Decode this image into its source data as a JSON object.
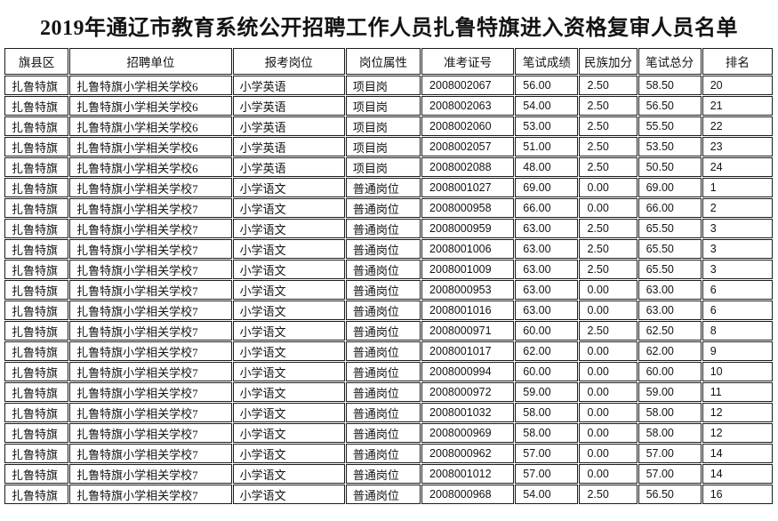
{
  "title": "2019年通辽市教育系统公开招聘工作人员扎鲁特旗进入资格复审人员名单",
  "table": {
    "columns": [
      "旗县区",
      "招聘单位",
      "报考岗位",
      "岗位属性",
      "准考证号",
      "笔试成绩",
      "民族加分",
      "笔试总分",
      "排名"
    ],
    "rows": [
      [
        "扎鲁特旗",
        "扎鲁特旗小学相关学校6",
        "小学英语",
        "项目岗",
        "2008002067",
        "56.00",
        "2.50",
        "58.50",
        "20"
      ],
      [
        "扎鲁特旗",
        "扎鲁特旗小学相关学校6",
        "小学英语",
        "项目岗",
        "2008002063",
        "54.00",
        "2.50",
        "56.50",
        "21"
      ],
      [
        "扎鲁特旗",
        "扎鲁特旗小学相关学校6",
        "小学英语",
        "项目岗",
        "2008002060",
        "53.00",
        "2.50",
        "55.50",
        "22"
      ],
      [
        "扎鲁特旗",
        "扎鲁特旗小学相关学校6",
        "小学英语",
        "项目岗",
        "2008002057",
        "51.00",
        "2.50",
        "53.50",
        "23"
      ],
      [
        "扎鲁特旗",
        "扎鲁特旗小学相关学校6",
        "小学英语",
        "项目岗",
        "2008002088",
        "48.00",
        "2.50",
        "50.50",
        "24"
      ],
      [
        "扎鲁特旗",
        "扎鲁特旗小学相关学校7",
        "小学语文",
        "普通岗位",
        "2008001027",
        "69.00",
        "0.00",
        "69.00",
        "1"
      ],
      [
        "扎鲁特旗",
        "扎鲁特旗小学相关学校7",
        "小学语文",
        "普通岗位",
        "2008000958",
        "66.00",
        "0.00",
        "66.00",
        "2"
      ],
      [
        "扎鲁特旗",
        "扎鲁特旗小学相关学校7",
        "小学语文",
        "普通岗位",
        "2008000959",
        "63.00",
        "2.50",
        "65.50",
        "3"
      ],
      [
        "扎鲁特旗",
        "扎鲁特旗小学相关学校7",
        "小学语文",
        "普通岗位",
        "2008001006",
        "63.00",
        "2.50",
        "65.50",
        "3"
      ],
      [
        "扎鲁特旗",
        "扎鲁特旗小学相关学校7",
        "小学语文",
        "普通岗位",
        "2008001009",
        "63.00",
        "2.50",
        "65.50",
        "3"
      ],
      [
        "扎鲁特旗",
        "扎鲁特旗小学相关学校7",
        "小学语文",
        "普通岗位",
        "2008000953",
        "63.00",
        "0.00",
        "63.00",
        "6"
      ],
      [
        "扎鲁特旗",
        "扎鲁特旗小学相关学校7",
        "小学语文",
        "普通岗位",
        "2008001016",
        "63.00",
        "0.00",
        "63.00",
        "6"
      ],
      [
        "扎鲁特旗",
        "扎鲁特旗小学相关学校7",
        "小学语文",
        "普通岗位",
        "2008000971",
        "60.00",
        "2.50",
        "62.50",
        "8"
      ],
      [
        "扎鲁特旗",
        "扎鲁特旗小学相关学校7",
        "小学语文",
        "普通岗位",
        "2008001017",
        "62.00",
        "0.00",
        "62.00",
        "9"
      ],
      [
        "扎鲁特旗",
        "扎鲁特旗小学相关学校7",
        "小学语文",
        "普通岗位",
        "2008000994",
        "60.00",
        "0.00",
        "60.00",
        "10"
      ],
      [
        "扎鲁特旗",
        "扎鲁特旗小学相关学校7",
        "小学语文",
        "普通岗位",
        "2008000972",
        "59.00",
        "0.00",
        "59.00",
        "11"
      ],
      [
        "扎鲁特旗",
        "扎鲁特旗小学相关学校7",
        "小学语文",
        "普通岗位",
        "2008001032",
        "58.00",
        "0.00",
        "58.00",
        "12"
      ],
      [
        "扎鲁特旗",
        "扎鲁特旗小学相关学校7",
        "小学语文",
        "普通岗位",
        "2008000969",
        "58.00",
        "0.00",
        "58.00",
        "12"
      ],
      [
        "扎鲁特旗",
        "扎鲁特旗小学相关学校7",
        "小学语文",
        "普通岗位",
        "2008000962",
        "57.00",
        "0.00",
        "57.00",
        "14"
      ],
      [
        "扎鲁特旗",
        "扎鲁特旗小学相关学校7",
        "小学语文",
        "普通岗位",
        "2008001012",
        "57.00",
        "0.00",
        "57.00",
        "14"
      ],
      [
        "扎鲁特旗",
        "扎鲁特旗小学相关学校7",
        "小学语文",
        "普通岗位",
        "2008000968",
        "54.00",
        "2.50",
        "56.50",
        "16"
      ]
    ]
  }
}
